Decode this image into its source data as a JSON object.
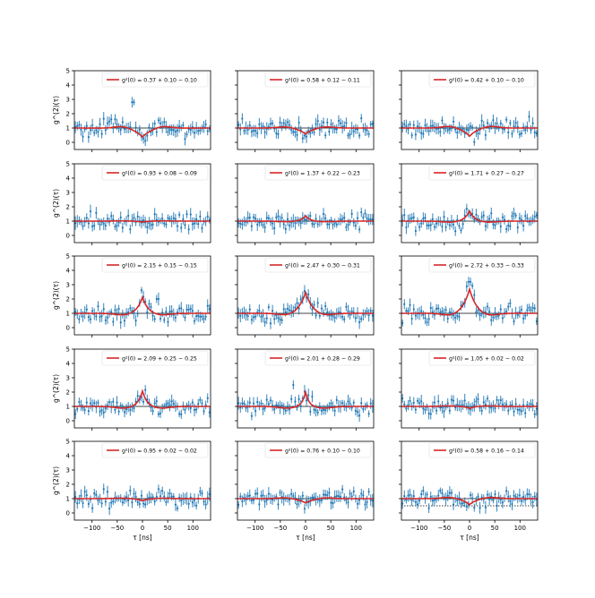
{
  "figure": {
    "ylabel": "g^(2)(τ)",
    "xlabel": "τ [ns]",
    "xticks": [
      "−100",
      "−50",
      "0",
      "50",
      "100"
    ],
    "yticks": [
      "0",
      "1",
      "2",
      "3",
      "4",
      "5"
    ],
    "colors": {
      "data": "#1f77b4",
      "fit": "#d62728",
      "reference_line": "#444444"
    }
  },
  "chart_data": [
    {
      "type": "scatter",
      "xlim": [
        -135,
        135
      ],
      "ylim": [
        -0.5,
        5
      ],
      "g2_0": 0.37,
      "err_plus": 0.1,
      "err_minus": 0.1,
      "legend": "g²(0) = 0.37 + 0.10 − 0.10",
      "series": [
        {
          "name": "measured",
          "kind": "scatter with error bars"
        },
        {
          "name": "fit",
          "kind": "line",
          "dip_depth": 0.63,
          "width_ns": 18
        }
      ]
    },
    {
      "type": "scatter",
      "xlim": [
        -135,
        135
      ],
      "ylim": [
        -0.5,
        5
      ],
      "g2_0": 0.58,
      "err_plus": 0.12,
      "err_minus": 0.11,
      "legend": "g²(0) = 0.58 + 0.12 − 0.11",
      "series": [
        {
          "name": "measured",
          "kind": "scatter with error bars"
        },
        {
          "name": "fit",
          "kind": "line",
          "dip_depth": 0.42,
          "width_ns": 15
        }
      ]
    },
    {
      "type": "scatter",
      "xlim": [
        -135,
        135
      ],
      "ylim": [
        -0.5,
        5
      ],
      "g2_0": 0.42,
      "err_plus": 0.1,
      "err_minus": 0.1,
      "legend": "g²(0) = 0.42 + 0.10 − 0.10",
      "series": [
        {
          "name": "measured",
          "kind": "scatter with error bars"
        },
        {
          "name": "fit",
          "kind": "line",
          "dip_depth": 0.58,
          "width_ns": 15
        }
      ]
    },
    {
      "type": "scatter",
      "xlim": [
        -135,
        135
      ],
      "ylim": [
        -0.5,
        5
      ],
      "g2_0": 0.93,
      "err_plus": 0.08,
      "err_minus": 0.09,
      "legend": "g²(0) = 0.93 + 0.08 − 0.09",
      "series": [
        {
          "name": "measured",
          "kind": "scatter with error bars"
        },
        {
          "name": "fit",
          "kind": "line",
          "dip_depth": 0.07,
          "width_ns": 10
        }
      ]
    },
    {
      "type": "scatter",
      "xlim": [
        -135,
        135
      ],
      "ylim": [
        -0.5,
        5
      ],
      "g2_0": 1.37,
      "err_plus": 0.22,
      "err_minus": 0.23,
      "legend": "g²(0) = 1.37 + 0.22 − 0.23",
      "series": [
        {
          "name": "measured",
          "kind": "scatter with error bars"
        },
        {
          "name": "fit",
          "kind": "line",
          "peak": 0.37,
          "width_ns": 9
        }
      ]
    },
    {
      "type": "scatter",
      "xlim": [
        -135,
        135
      ],
      "ylim": [
        -0.5,
        5
      ],
      "g2_0": 1.71,
      "err_plus": 0.27,
      "err_minus": 0.27,
      "legend": "g²(0) = 1.71 + 0.27 − 0.27",
      "series": [
        {
          "name": "measured",
          "kind": "scatter with error bars"
        },
        {
          "name": "fit",
          "kind": "line",
          "peak": 0.71,
          "width_ns": 10
        }
      ]
    },
    {
      "type": "scatter",
      "xlim": [
        -135,
        135
      ],
      "ylim": [
        -0.5,
        5
      ],
      "g2_0": 2.15,
      "err_plus": 0.15,
      "err_minus": 0.15,
      "legend": "g²(0) = 2.15 + 0.15 − 0.15",
      "series": [
        {
          "name": "measured",
          "kind": "scatter with error bars"
        },
        {
          "name": "fit",
          "kind": "line",
          "peak": 1.15,
          "width_ns": 11
        }
      ]
    },
    {
      "type": "scatter",
      "xlim": [
        -135,
        135
      ],
      "ylim": [
        -0.5,
        5
      ],
      "g2_0": 2.47,
      "err_plus": 0.3,
      "err_minus": 0.31,
      "legend": "g²(0) = 2.47 + 0.30 − 0.31",
      "series": [
        {
          "name": "measured",
          "kind": "scatter with error bars"
        },
        {
          "name": "fit",
          "kind": "line",
          "peak": 1.47,
          "width_ns": 14
        }
      ]
    },
    {
      "type": "scatter",
      "xlim": [
        -135,
        135
      ],
      "ylim": [
        -0.5,
        5
      ],
      "g2_0": 2.72,
      "err_plus": 0.33,
      "err_minus": 0.33,
      "legend": "g²(0) = 2.72 + 0.33 − 0.33",
      "series": [
        {
          "name": "measured",
          "kind": "scatter with error bars"
        },
        {
          "name": "fit",
          "kind": "line",
          "peak": 1.72,
          "width_ns": 14
        }
      ]
    },
    {
      "type": "scatter",
      "xlim": [
        -135,
        135
      ],
      "ylim": [
        -0.5,
        5
      ],
      "g2_0": 2.09,
      "err_plus": 0.25,
      "err_minus": 0.25,
      "legend": "g²(0) = 2.09 + 0.25 − 0.25",
      "series": [
        {
          "name": "measured",
          "kind": "scatter with error bars"
        },
        {
          "name": "fit",
          "kind": "line",
          "peak": 1.09,
          "width_ns": 9
        }
      ]
    },
    {
      "type": "scatter",
      "xlim": [
        -135,
        135
      ],
      "ylim": [
        -0.5,
        5
      ],
      "g2_0": 2.01,
      "err_plus": 0.28,
      "err_minus": 0.29,
      "legend": "g²(0) = 2.01 + 0.28 − 0.29",
      "series": [
        {
          "name": "measured",
          "kind": "scatter with error bars"
        },
        {
          "name": "fit",
          "kind": "line",
          "peak": 1.01,
          "width_ns": 7
        }
      ]
    },
    {
      "type": "scatter",
      "xlim": [
        -135,
        135
      ],
      "ylim": [
        -0.5,
        5
      ],
      "g2_0": 1.05,
      "err_plus": 0.02,
      "err_minus": 0.02,
      "legend": "g²(0) = 1.05 + 0.02 − 0.02",
      "series": [
        {
          "name": "measured",
          "kind": "scatter with error bars"
        },
        {
          "name": "fit",
          "kind": "line",
          "dip_depth": 0.15,
          "width_ns": 8
        }
      ]
    },
    {
      "type": "scatter",
      "xlim": [
        -135,
        135
      ],
      "ylim": [
        -0.5,
        5
      ],
      "g2_0": 0.95,
      "err_plus": 0.02,
      "err_minus": 0.02,
      "legend": "g²(0) = 0.95 + 0.02 − 0.02",
      "series": [
        {
          "name": "measured",
          "kind": "scatter with error bars"
        },
        {
          "name": "fit",
          "kind": "line",
          "dip_depth": 0.15,
          "width_ns": 12
        }
      ]
    },
    {
      "type": "scatter",
      "xlim": [
        -135,
        135
      ],
      "ylim": [
        -0.5,
        5
      ],
      "g2_0": 0.76,
      "err_plus": 0.1,
      "err_minus": 0.1,
      "legend": "g²(0) = 0.76 + 0.10 − 0.10",
      "series": [
        {
          "name": "measured",
          "kind": "scatter with error bars"
        },
        {
          "name": "fit",
          "kind": "line",
          "dip_depth": 0.3,
          "width_ns": 16
        }
      ]
    },
    {
      "type": "scatter",
      "xlim": [
        -135,
        135
      ],
      "ylim": [
        -0.5,
        5
      ],
      "g2_0": 0.58,
      "err_plus": 0.16,
      "err_minus": 0.14,
      "legend": "g²(0) = 0.58 + 0.16 − 0.14",
      "series": [
        {
          "name": "measured",
          "kind": "scatter with error bars"
        },
        {
          "name": "fit",
          "kind": "line",
          "dip_depth": 0.42,
          "width_ns": 14
        }
      ]
    }
  ]
}
